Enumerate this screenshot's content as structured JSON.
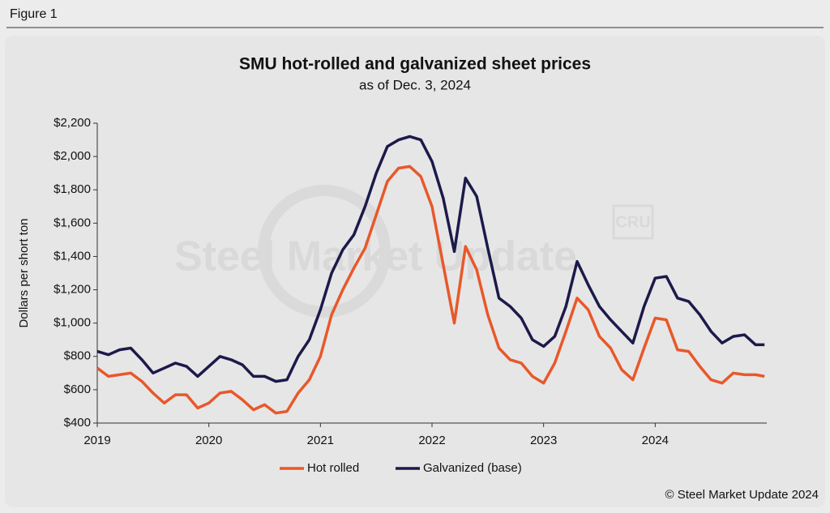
{
  "figure_label": "Figure 1",
  "chart_data": {
    "type": "line",
    "title": "SMU hot-rolled and galvanized sheet prices",
    "subtitle": "as of Dec. 3, 2024",
    "ylabel": "Dollars per short ton",
    "watermark": "Steel Market Update",
    "logo": "CRU",
    "source": "© Steel Market Update 2024",
    "x": [
      2019.0,
      2019.1,
      2019.2,
      2019.3,
      2019.4,
      2019.5,
      2019.6,
      2019.7,
      2019.8,
      2019.9,
      2020.0,
      2020.1,
      2020.2,
      2020.3,
      2020.4,
      2020.5,
      2020.6,
      2020.7,
      2020.8,
      2020.9,
      2021.0,
      2021.1,
      2021.2,
      2021.3,
      2021.4,
      2021.5,
      2021.6,
      2021.7,
      2021.8,
      2021.9,
      2022.0,
      2022.1,
      2022.2,
      2022.3,
      2022.4,
      2022.5,
      2022.6,
      2022.7,
      2022.8,
      2022.9,
      2023.0,
      2023.1,
      2023.2,
      2023.3,
      2023.4,
      2023.5,
      2023.6,
      2023.7,
      2023.8,
      2023.9,
      2024.0,
      2024.1,
      2024.2,
      2024.3,
      2024.4,
      2024.5,
      2024.6,
      2024.7,
      2024.8,
      2024.9,
      2024.98
    ],
    "series": [
      {
        "name": "Hot rolled",
        "color": "#e8582a",
        "values": [
          730,
          680,
          690,
          700,
          650,
          580,
          520,
          570,
          570,
          490,
          520,
          580,
          590,
          540,
          480,
          510,
          460,
          470,
          580,
          660,
          800,
          1050,
          1200,
          1330,
          1450,
          1650,
          1850,
          1930,
          1940,
          1880,
          1700,
          1350,
          1000,
          1460,
          1320,
          1050,
          850,
          780,
          760,
          680,
          640,
          760,
          950,
          1150,
          1080,
          920,
          850,
          720,
          660,
          850,
          1030,
          1020,
          840,
          830,
          740,
          660,
          640,
          700,
          690,
          690,
          680
        ]
      },
      {
        "name": "Galvanized (base)",
        "color": "#1c1a4a",
        "values": [
          830,
          810,
          840,
          850,
          780,
          700,
          730,
          760,
          740,
          680,
          740,
          800,
          780,
          750,
          680,
          680,
          650,
          660,
          800,
          900,
          1080,
          1300,
          1440,
          1530,
          1700,
          1900,
          2060,
          2100,
          2120,
          2100,
          1970,
          1750,
          1430,
          1870,
          1760,
          1450,
          1150,
          1100,
          1030,
          900,
          860,
          920,
          1100,
          1370,
          1230,
          1100,
          1020,
          950,
          880,
          1100,
          1270,
          1280,
          1150,
          1130,
          1050,
          950,
          880,
          920,
          930,
          870,
          870
        ]
      }
    ],
    "xlim": [
      2019,
      2025
    ],
    "xticks": [
      2019,
      2020,
      2021,
      2022,
      2023,
      2024
    ],
    "ylim": [
      400,
      2200
    ],
    "yticks": [
      {
        "value": 400,
        "label": "$400"
      },
      {
        "value": 600,
        "label": "$600"
      },
      {
        "value": 800,
        "label": "$800"
      },
      {
        "value": 1000,
        "label": "$1,000"
      },
      {
        "value": 1200,
        "label": "$1,200"
      },
      {
        "value": 1400,
        "label": "$1,400"
      },
      {
        "value": 1600,
        "label": "$1,600"
      },
      {
        "value": 1800,
        "label": "$1,800"
      },
      {
        "value": 2000,
        "label": "$2,000"
      },
      {
        "value": 2200,
        "label": "$2,200"
      }
    ],
    "legend": "bottom"
  }
}
